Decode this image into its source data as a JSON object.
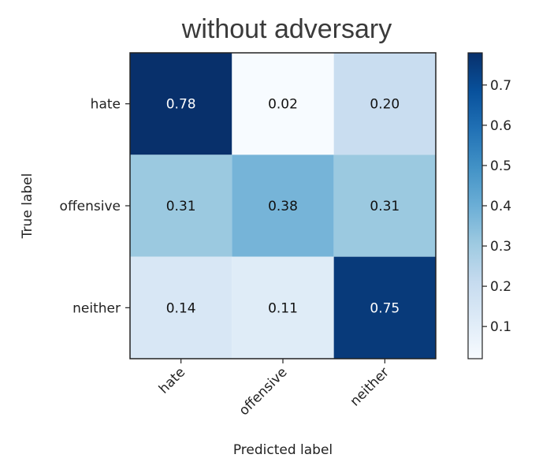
{
  "chart_data": {
    "type": "heatmap",
    "title": "without adversary",
    "xlabel": "Predicted label",
    "ylabel": "True label",
    "x_categories": [
      "hate",
      "offensive",
      "neither"
    ],
    "y_categories": [
      "hate",
      "offensive",
      "neither"
    ],
    "values": [
      [
        0.78,
        0.02,
        0.2
      ],
      [
        0.31,
        0.38,
        0.31
      ],
      [
        0.14,
        0.11,
        0.75
      ]
    ],
    "value_labels": [
      [
        "0.78",
        "0.02",
        "0.20"
      ],
      [
        "0.31",
        "0.38",
        "0.31"
      ],
      [
        "0.14",
        "0.11",
        "0.75"
      ]
    ],
    "colormap": "Blues",
    "colorbar": {
      "range": [
        0.02,
        0.78
      ],
      "ticks": [
        0.1,
        0.2,
        0.3,
        0.4,
        0.5,
        0.6,
        0.7
      ],
      "tick_labels": [
        "0.1",
        "0.2",
        "0.3",
        "0.4",
        "0.5",
        "0.6",
        "0.7"
      ]
    },
    "grid": false,
    "legend": "colorbar-right"
  }
}
